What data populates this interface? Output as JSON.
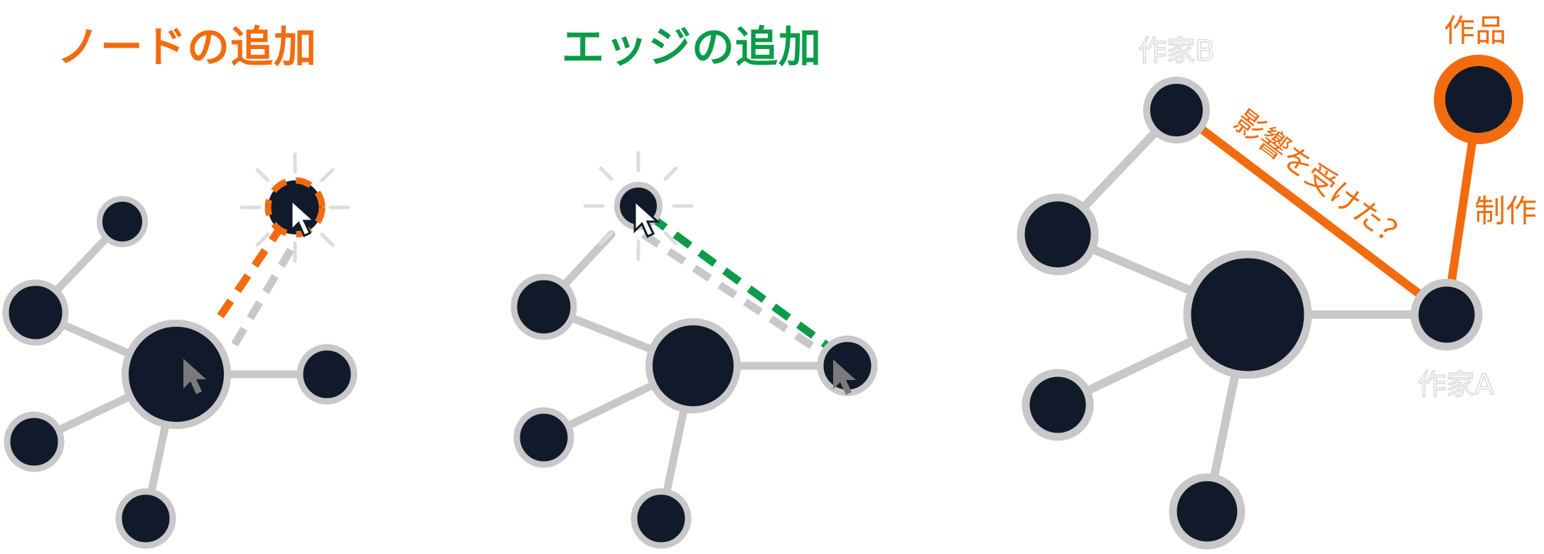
{
  "colors": {
    "node": "#111a2b",
    "ring": "#c8c8c8",
    "edge": "#c8c8c8",
    "orange": "#f26c0f",
    "green": "#0b9b49",
    "cursor": "#7a7a7a"
  },
  "panels": {
    "add_node": {
      "title": "ノードの追加"
    },
    "add_edge": {
      "title": "エッジの追加"
    },
    "knowledge": {
      "label_work": "作品",
      "label_author_b": "作家B",
      "label_author_a": "作家A",
      "edge_influenced": "影響を受けた？",
      "edge_created": "制作"
    }
  }
}
